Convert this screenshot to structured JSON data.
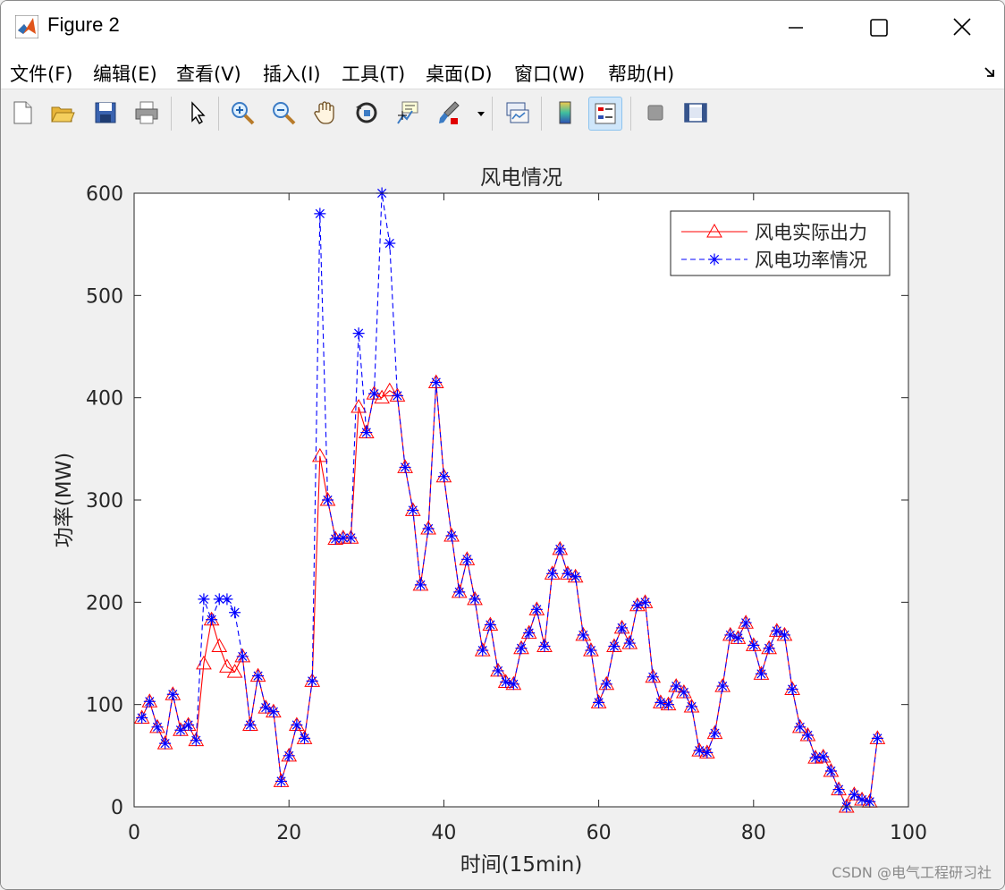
{
  "window": {
    "title": "Figure 2"
  },
  "menu": [
    "文件(F)",
    "编辑(E)",
    "查看(V)",
    "插入(I)",
    "工具(T)",
    "桌面(D)",
    "窗口(W)",
    "帮助(H)"
  ],
  "toolbar_icons": [
    "new-figure-icon",
    "open-file-icon",
    "save-icon",
    "print-icon",
    "pointer-icon",
    "zoom-in-icon",
    "zoom-out-icon",
    "pan-hand-icon",
    "rotate-3d-icon",
    "data-cursor-icon",
    "brush-icon",
    "link-plot-icon",
    "colorbar-icon",
    "legend-icon",
    "hide-plot-tools-icon",
    "show-plot-tools-icon"
  ],
  "watermark": "CSDN @电气工程研习社",
  "chart_data": {
    "type": "line",
    "title": "风电情况",
    "xlabel": "时间(15min)",
    "ylabel": "功率(MW)",
    "xlim": [
      0,
      100
    ],
    "ylim": [
      0,
      600
    ],
    "xticks": [
      0,
      20,
      40,
      60,
      80,
      100
    ],
    "yticks": [
      0,
      100,
      200,
      300,
      400,
      500,
      600
    ],
    "grid": false,
    "legend_position": "top-right",
    "x": [
      1,
      2,
      3,
      4,
      5,
      6,
      7,
      8,
      9,
      10,
      11,
      12,
      13,
      14,
      15,
      16,
      17,
      18,
      19,
      20,
      21,
      22,
      23,
      24,
      25,
      26,
      27,
      28,
      29,
      30,
      31,
      32,
      33,
      34,
      35,
      36,
      37,
      38,
      39,
      40,
      41,
      42,
      43,
      44,
      45,
      46,
      47,
      48,
      49,
      50,
      51,
      52,
      53,
      54,
      55,
      56,
      57,
      58,
      59,
      60,
      61,
      62,
      63,
      64,
      65,
      66,
      67,
      68,
      69,
      70,
      71,
      72,
      73,
      74,
      75,
      76,
      77,
      78,
      79,
      80,
      81,
      82,
      83,
      84,
      85,
      86,
      87,
      88,
      89,
      90,
      91,
      92,
      93,
      94,
      95,
      96
    ],
    "series": [
      {
        "name": "风电实际出力",
        "color": "#ff0000",
        "marker": "triangle",
        "dash": "solid",
        "values": [
          87,
          103,
          78,
          62,
          110,
          75,
          80,
          65,
          140,
          183,
          157,
          137,
          132,
          147,
          80,
          128,
          97,
          93,
          25,
          50,
          80,
          67,
          123,
          343,
          300,
          262,
          263,
          263,
          391,
          366,
          404,
          400,
          407,
          402,
          332,
          290,
          217,
          272,
          415,
          323,
          265,
          210,
          242,
          203,
          153,
          178,
          133,
          122,
          120,
          155,
          170,
          193,
          157,
          228,
          252,
          228,
          225,
          168,
          153,
          102,
          120,
          157,
          175,
          160,
          197,
          200,
          127,
          102,
          100,
          118,
          112,
          98,
          55,
          53,
          72,
          118,
          168,
          165,
          180,
          158,
          130,
          155,
          172,
          168,
          115,
          78,
          70,
          48,
          49,
          35,
          17,
          0,
          12,
          7,
          5,
          67
        ]
      },
      {
        "name": "风电功率情况",
        "color": "#0000ff",
        "marker": "asterisk",
        "dash": "dashed",
        "values": [
          87,
          103,
          78,
          62,
          110,
          75,
          80,
          65,
          203,
          183,
          203,
          203,
          190,
          147,
          80,
          128,
          97,
          93,
          25,
          50,
          80,
          67,
          123,
          580,
          300,
          262,
          263,
          263,
          463,
          366,
          404,
          600,
          551,
          402,
          332,
          290,
          217,
          272,
          415,
          323,
          265,
          210,
          242,
          203,
          153,
          178,
          133,
          122,
          120,
          155,
          170,
          193,
          157,
          228,
          252,
          228,
          225,
          168,
          153,
          102,
          120,
          157,
          175,
          160,
          197,
          200,
          127,
          102,
          100,
          118,
          112,
          98,
          55,
          53,
          72,
          118,
          168,
          165,
          180,
          158,
          130,
          155,
          172,
          168,
          115,
          78,
          70,
          48,
          49,
          35,
          17,
          0,
          12,
          7,
          5,
          67
        ]
      }
    ]
  }
}
